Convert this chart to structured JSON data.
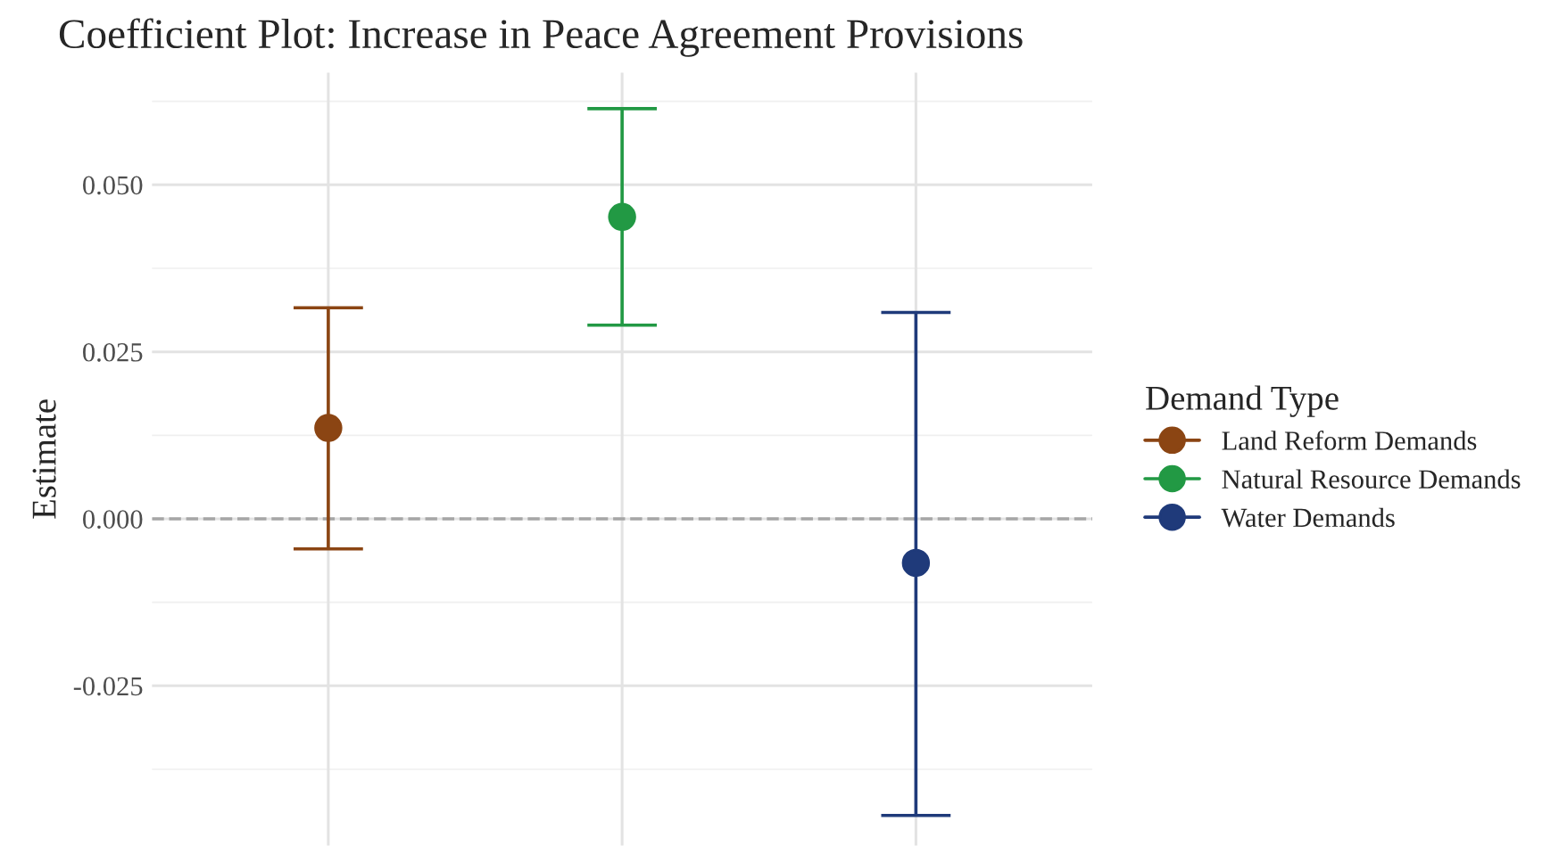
{
  "chart_data": {
    "type": "scatter",
    "title": "Coefficient Plot: Increase in Peace Agreement Provisions",
    "ylabel": "Estimate",
    "legend_title": "Demand Type",
    "categories": [
      null,
      null,
      null
    ],
    "series": [
      {
        "name": "Land Reform Demands",
        "color": "#8b4513",
        "values": [
          0.0136,
          null,
          null
        ],
        "errors": [
          [
            -0.0045,
            0.0316
          ],
          null,
          null
        ]
      },
      {
        "name": "Natural Resource Demands",
        "color": "#229944",
        "values": [
          null,
          0.0452,
          null
        ],
        "errors": [
          null,
          [
            0.029,
            0.0614
          ],
          null
        ]
      },
      {
        "name": "Water Demands",
        "color": "#1f3a7a",
        "values": [
          null,
          null,
          -0.0066
        ],
        "errors": [
          null,
          null,
          [
            -0.0444,
            0.0309
          ]
        ]
      }
    ],
    "ylim": [
      -0.0489,
      0.0668
    ],
    "yticks": [
      {
        "value": -0.025,
        "label": "-0.025"
      },
      {
        "value": 0,
        "label": "0.000"
      },
      {
        "value": 0.025,
        "label": "0.025"
      },
      {
        "value": 0.05,
        "label": "0.050"
      }
    ],
    "ref_lines": [
      {
        "axis": "y",
        "value": 0,
        "color": "#a6a6a6",
        "line_style": "dashed"
      }
    ],
    "grid": true,
    "legend": "right",
    "marker": "circle"
  }
}
